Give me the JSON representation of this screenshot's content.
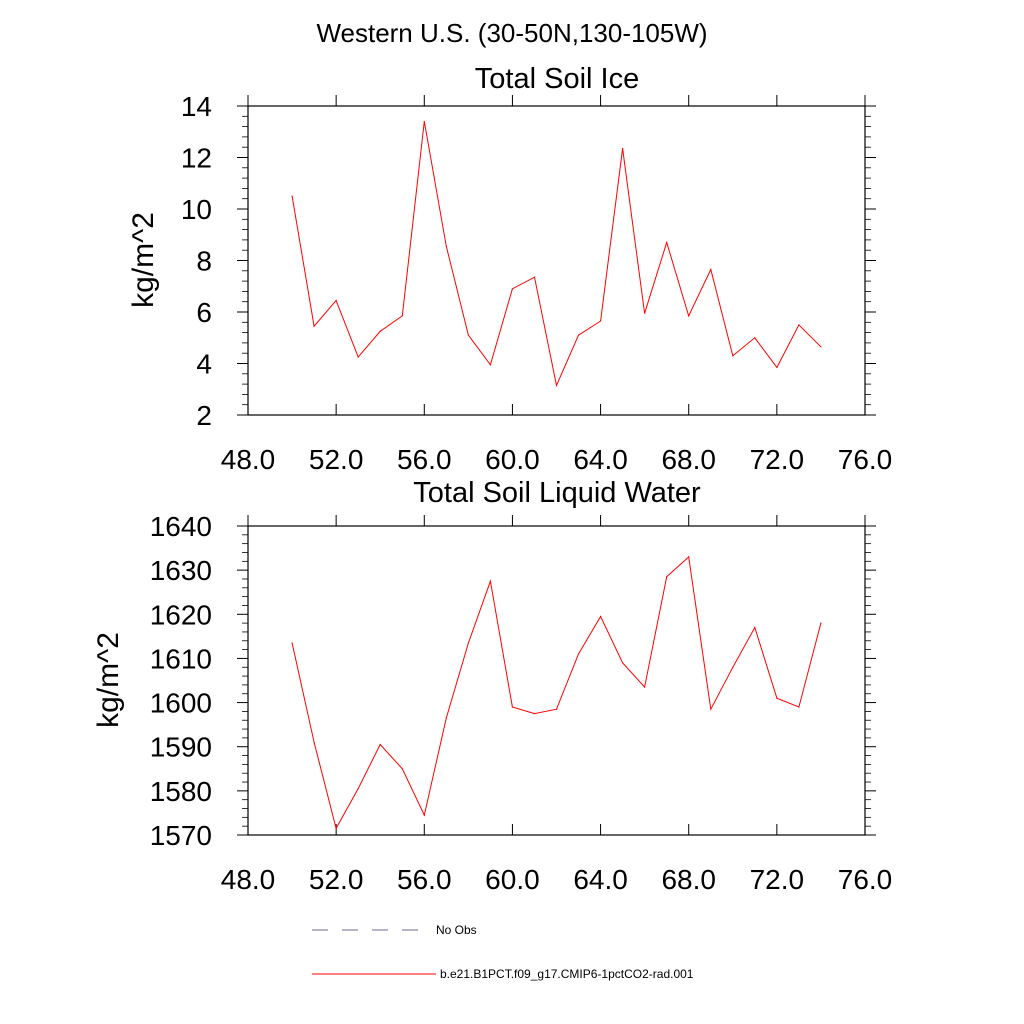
{
  "figure": {
    "main_title": "Western U.S. (30-50N,130-105W)"
  },
  "chart_data": [
    {
      "type": "line",
      "title": "Total Soil Ice",
      "xlabel": "",
      "ylabel": "kg/m^2",
      "xlim": [
        48.0,
        76.0
      ],
      "ylim": [
        2,
        14
      ],
      "x_ticks": [
        "48.0",
        "52.0",
        "56.0",
        "60.0",
        "64.0",
        "68.0",
        "72.0",
        "76.0"
      ],
      "y_ticks": [
        "2",
        "4",
        "6",
        "8",
        "10",
        "12",
        "14"
      ],
      "grid": false,
      "series": [
        {
          "name": "b.e21.B1PCT.f09_g17.CMIP6-1pctCO2-rad.001",
          "color": "#ff0000",
          "x": [
            50,
            51,
            52,
            53,
            54,
            55,
            56,
            57,
            58,
            59,
            60,
            61,
            62,
            63,
            64,
            65,
            66,
            67,
            68,
            69,
            70,
            71,
            72,
            73,
            74
          ],
          "y": [
            10.5,
            5.45,
            6.45,
            4.25,
            5.25,
            5.85,
            13.4,
            8.55,
            5.1,
            3.95,
            6.9,
            7.35,
            3.15,
            5.1,
            5.65,
            12.35,
            5.95,
            8.7,
            5.85,
            7.65,
            4.3,
            5.0,
            3.85,
            5.5,
            4.65
          ]
        }
      ]
    },
    {
      "type": "line",
      "title": "Total Soil Liquid Water",
      "xlabel": "",
      "ylabel": "kg/m^2",
      "xlim": [
        48.0,
        76.0
      ],
      "ylim": [
        1570,
        1640
      ],
      "x_ticks": [
        "48.0",
        "52.0",
        "56.0",
        "60.0",
        "64.0",
        "68.0",
        "72.0",
        "76.0"
      ],
      "y_ticks": [
        "1570",
        "1580",
        "1590",
        "1600",
        "1610",
        "1620",
        "1630",
        "1640"
      ],
      "grid": false,
      "series": [
        {
          "name": "b.e21.B1PCT.f09_g17.CMIP6-1pctCO2-rad.001",
          "color": "#ff0000",
          "x": [
            50,
            51,
            52,
            53,
            54,
            55,
            56,
            57,
            58,
            59,
            60,
            61,
            62,
            63,
            64,
            65,
            66,
            67,
            68,
            69,
            70,
            71,
            72,
            73,
            74
          ],
          "y": [
            1613.5,
            1591,
            1571.5,
            1580.5,
            1590.5,
            1585,
            1574.5,
            1596.5,
            1613.5,
            1627.5,
            1599,
            1597.5,
            1598.5,
            1611,
            1619.5,
            1609,
            1603.5,
            1628.5,
            1633,
            1598.5,
            1608,
            1617,
            1601,
            1599,
            1618
          ]
        }
      ]
    }
  ],
  "legend": {
    "placement": "bottom",
    "entries": [
      {
        "label": "No Obs",
        "color": "#6a6a9a",
        "dash": "dashed"
      },
      {
        "label": "b.e21.B1PCT.f09_g17.CMIP6-1pctCO2-rad.001",
        "color": "#ff0000",
        "dash": "solid"
      }
    ]
  }
}
